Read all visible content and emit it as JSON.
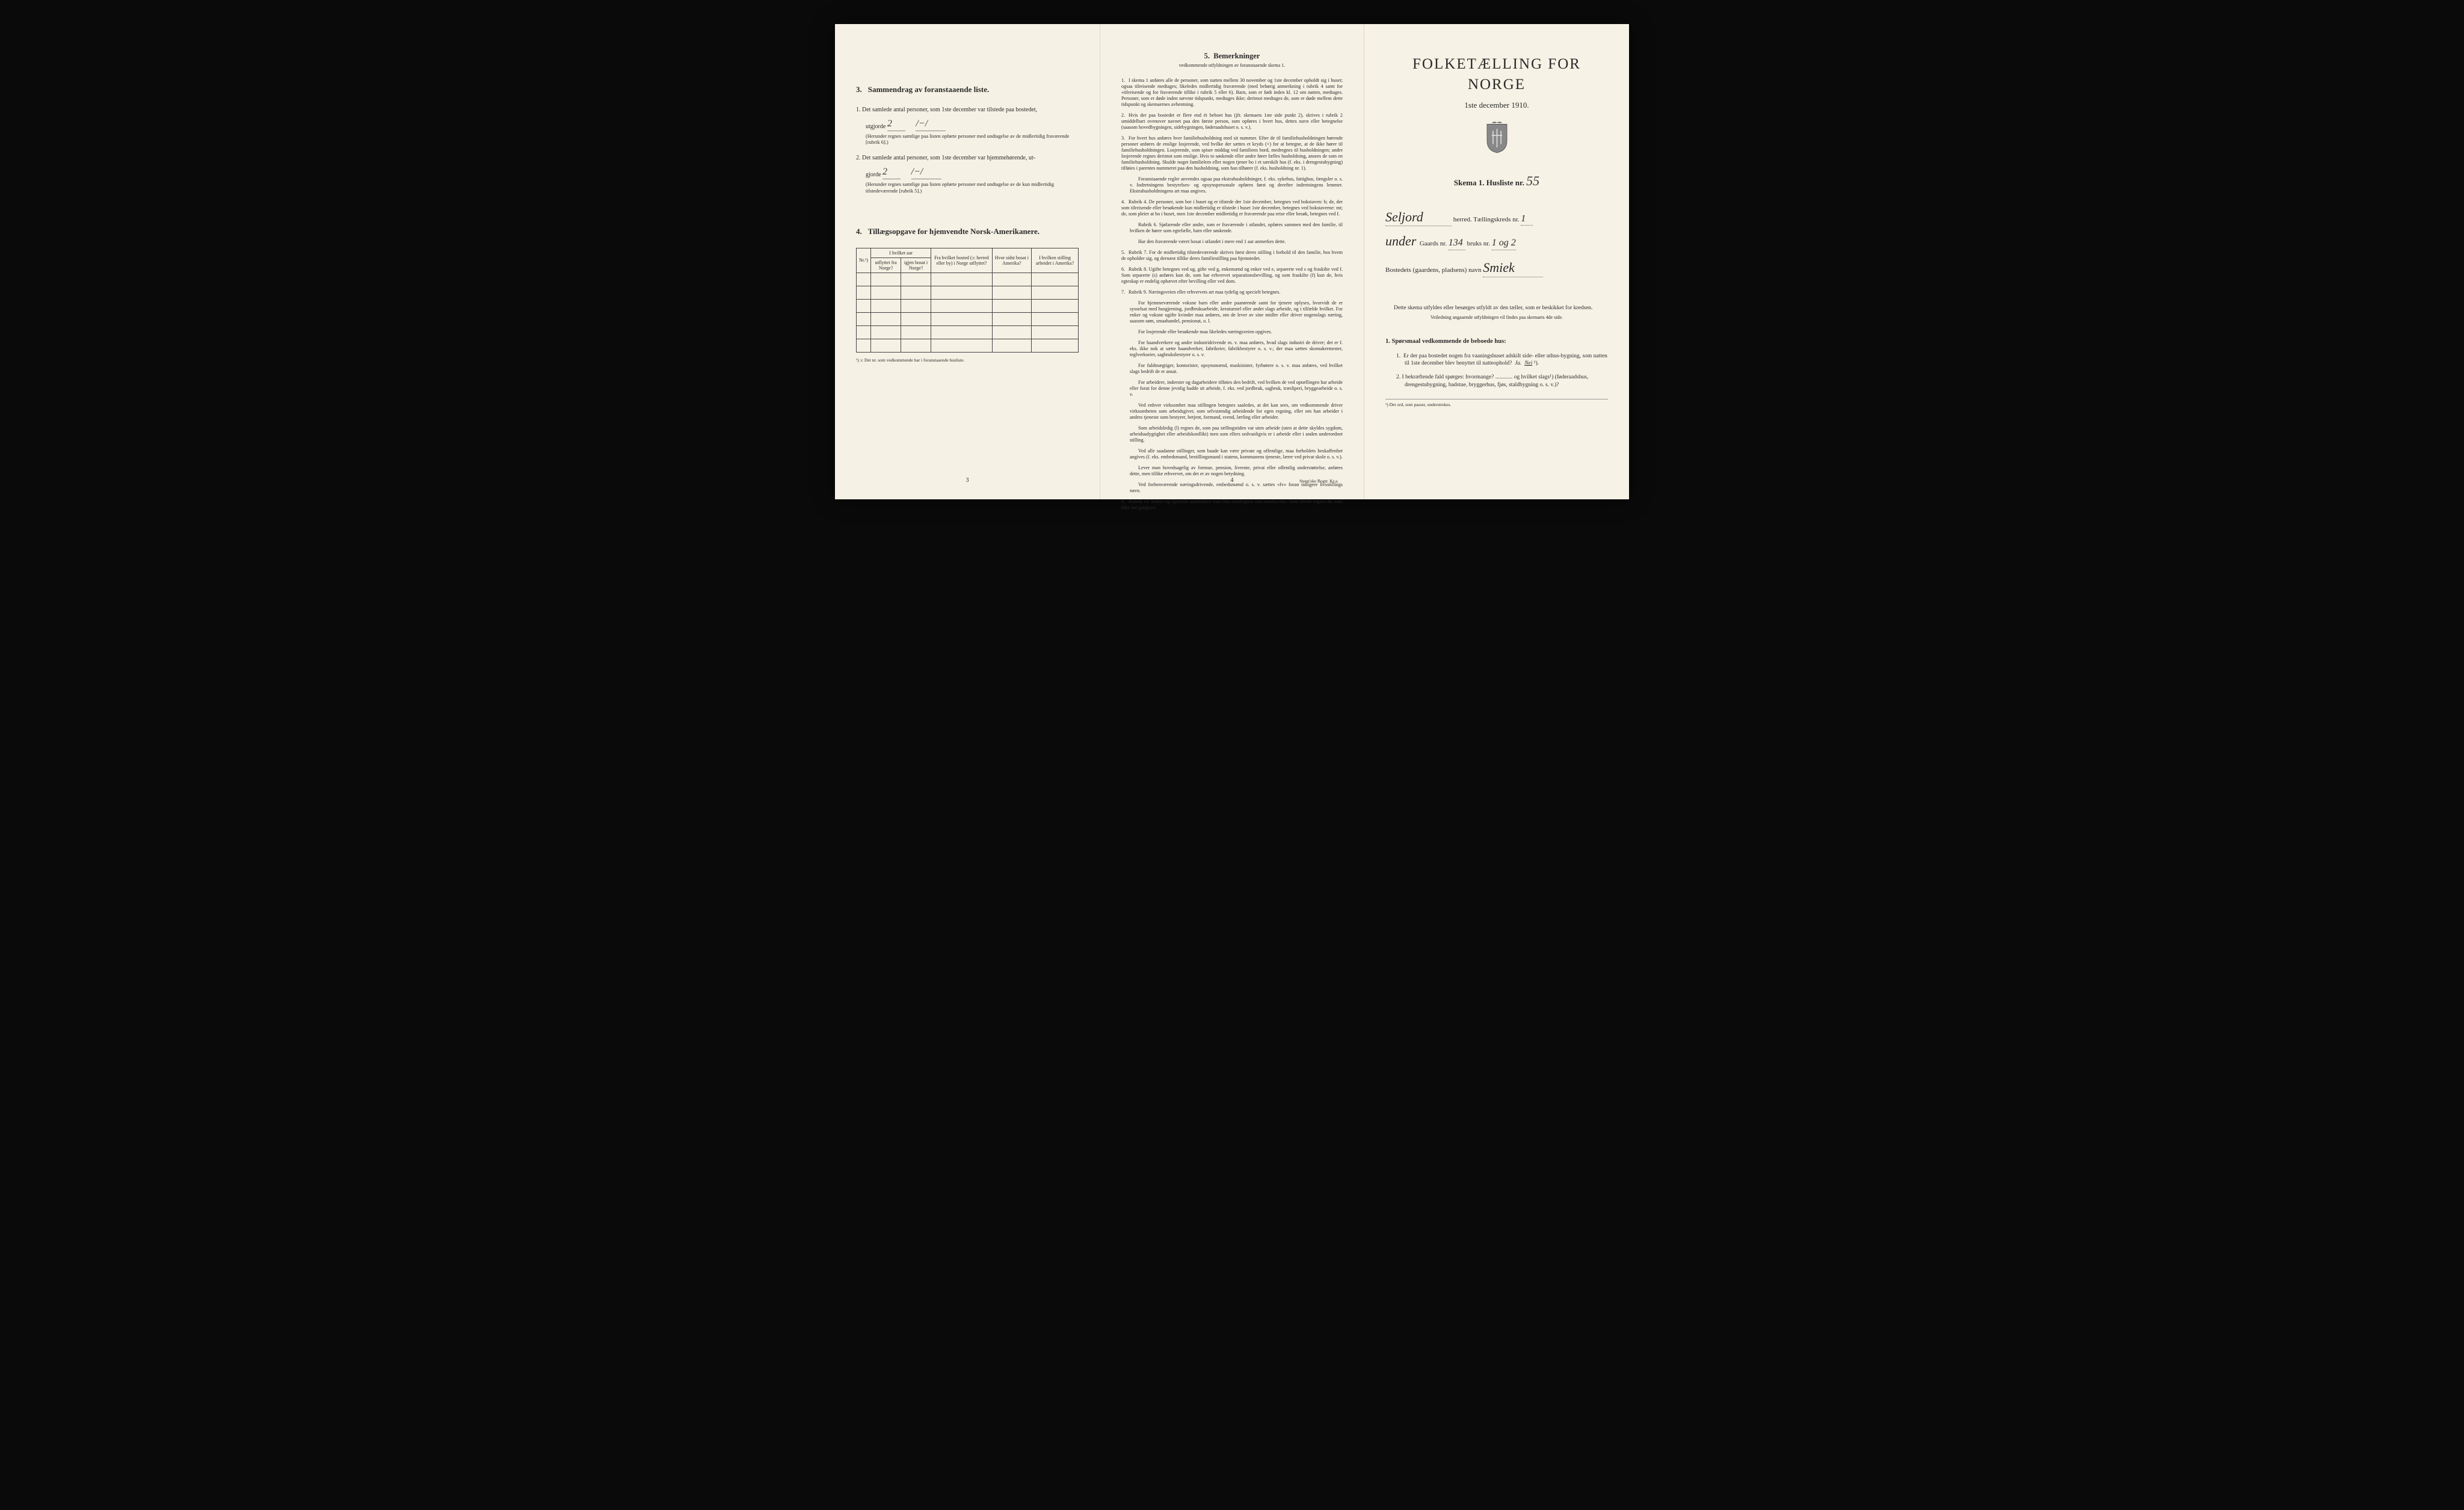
{
  "background_color": "#0a0a0a",
  "page_bg": "#f5f1e4",
  "text_color": "#2a2a2a",
  "left": {
    "sec3": {
      "num": "3.",
      "title": "Sammendrag av foranstaaende liste.",
      "item1_label": "1.  Det samlede antal personer, som 1ste december var tilstede paa bostedet,",
      "utgjorde": "utgjorde",
      "item1_val1": "2",
      "item1_val2": "/−/",
      "item1_note": "(Herunder regnes samtlige paa listen opførte personer med undtagelse av de midlertidig fraværende [rubrik 6].)",
      "item2_label": "2.  Det samlede antal personer, som 1ste december var hjemmehørende, ut-",
      "gjorde": "gjorde",
      "item2_val1": "2",
      "item2_val2": "/−/",
      "item2_note": "(Herunder regnes samtlige paa listen opførte personer med undtagelse av de kun midlertidig tilstedeværende [rubrik 5].)"
    },
    "sec4": {
      "num": "4.",
      "title": "Tillægsopgave for hjemvendte Norsk-Amerikanere.",
      "cols": {
        "c1": "Nr.¹)",
        "c2a": "I hvilket aar",
        "c2b1": "utflyttet fra Norge?",
        "c2b2": "igjen bosat i Norge?",
        "c3": "Fra hvilket bosted (ɔ: herred eller by) i Norge utflyttet?",
        "c4": "Hvor sidst bosat i Amerika?",
        "c5": "I hvilken stilling arbeidet i Amerika?"
      },
      "empty_rows": 6,
      "footnote": "¹) ɔ: Det nr. som vedkommende har i foranstaaende husliste."
    },
    "page_num": "3"
  },
  "middle": {
    "head_num": "5.",
    "head": "Bemerkninger",
    "sub": "vedkommende utfyldningen av foranstaaende skema 1.",
    "rules": [
      {
        "n": "1.",
        "text": "I skema 1 anføres alle de personer, som natten mellem 30 november og 1ste december opholdt sig i huset; ogsaa tilreisende medtages; likeledes midlertidig fraværende (med behørig anmerkning i rubrik 4 samt for «tilreisende og for fraværende tillike i rubrik 5 eller 6). Barn, som er født inden kl. 12 om natten, medtages. Personer, som er døde inden nævnte tidspunkt, medtages ikke; derimot medtages de, som er døde mellem dette tidspunkt og skemaernes avhentning."
      },
      {
        "n": "2.",
        "text": "Hvis der paa bostedet er flere end ét beboet hus (jfr. skemaets 1ste side punkt 2), skrives i rubrik 2 umiddelbart ovenover navnet paa den første person, som opføres i hvert hus, dettes navn eller betegnelse (saasom hovedbygningen, sidebygningen, føderaadshuset o. s. v.)."
      },
      {
        "n": "3.",
        "text": "For hvert hus anføres hver familiehusholdning med sit nummer. Efter de til familiehusholdningen hørende personer anføres de enslige losjerende, ved hvilke der sættes et kryds (×) for at betegne, at de ikke hører til familiehusholdningen. Losjerende, som spiser middag ved familiens bord, medregnes til husholdningen; andre losjerende regnes derimot som enslige. Hvis to søskende eller andre fører fælles husholdning, ansees de som en familiehusholdning. Skulde noget familielem eller nogen tjener bo i et særskilt hus (f. eks. i drengestubygning) tilføies i parentes nummeret paa den husholdning, som han tilhører (f. eks. husholdning nr. 1).",
        "sub": "Foranstaaende regler anvendes ogsaa paa ekstrahusholdninger, f. eks. sykehus, fattighus, fængsler o. s. v. Indretningens bestyrelses- og opsynspersonale opføres først og derefter indretningens lemmer. Ekstrahusholdningens art maa angives."
      },
      {
        "n": "4.",
        "text": "Rubrik 4. De personer, som bor i huset og er tilstede der 1ste december, betegnes ved bokstaven: b; de, der som tilreisende eller besøkende kun midlertidig er tilstede i huset 1ste december, betegnes ved bokstaverne: mt; de, som pleier at bo i huset, men 1ste december midlertidig er fraværende paa reise eller besøk, betegnes ved f.",
        "sub": "Rubrik 6. Sjøfarende eller andre, som er fraværende i utlandet, opføres sammen med den familie, til hvilken de hører som egtefælle, barn eller søskende.\nHar den fraværende været bosat i utlandet i mere end 1 aar anmerkes dette."
      },
      {
        "n": "5.",
        "text": "Rubrik 7. For de midlertidig tilstedeværende skrives først deres stilling i forhold til den familie, hos hvem de opholder sig, og dernæst tillike deres familiestilling paa hjemstedet."
      },
      {
        "n": "6.",
        "text": "Rubrik 8. Ugifte betegnes ved ug, gifte ved g, enkemænd og enker ved e, separerte ved s og fraskilte ved f. Som separerte (s) anføres kun de, som har erhvervet separationsbevilling, og som fraskilte (f) kun de, hvis egteskap er endelig ophævet efter bevilling eller ved dom."
      },
      {
        "n": "7.",
        "text": "Rubrik 9. Næringsveien eller erhvervets art maa tydelig og specielt betegnes.",
        "paras": [
          "For hjemmeværende voksne barn eller andre paarørende samt for tjenere oplyses, hvorvidt de er sysselsat med husgjerning, jordbruksarbeide, kreaturstel eller andet slags arbeide, og i tilfælde hvilket. For enker og voksne ugifte kvinder maa anføres, om de lever av sine midler eller driver nogenslags næring, saasom søm, smaahandel, pensionat, o. l.",
          "For losjerende eller besøkende maa likeledes næringsveien opgives.",
          "For haandverkere og andre industridrivende m. v. maa anføres, hvad slags industri de driver; det er f. eks. ikke nok at sætte haandverker, fabrikeier, fabrikbestyrer o. s. v.; der maa sættes skomakermester, teglverkseier, sagbruksbestyrer o. s. v.",
          "For fuldmægtiger, kontorister, opsynsmænd, maskinister, fyrbøtere o. s. v. maa anføres, ved hvilket slags bedrift de er ansat.",
          "For arbeidere, inderster og dagarbeidere tilføies den bedrift, ved hvilken de ved optællingen har arbeide eller forut for denne jevnlig hadde sit arbeide, f. eks. ved jordbruk, sagbruk, træsliperi, bryggearbeide o. s. v.",
          "Ved enhver virksomhet maa stillingen betegnes saaledes, at det kan sees, om vedkommende driver virksomheten som arbeidsgiver, som selvstændig arbeidende for egen regning, eller om han arbeider i andres tjeneste som bestyrer, betjent, formand, svend, lærling eller arbeider.",
          "Som arbeidsledig (l) regnes de, som paa tællingstiden var uten arbeide (uten at dette skyldes sygdom, arbeidsudygtighet eller arbeidskonflikt) men som ellers sedvanligvis er i arbeide eller i anden underordnet stilling.",
          "Ved alle saadanne stillinger, som baade kan være private og offentlige, maa forholdets beskaffenhet angives (f. eks. embedsmand, bestillingsmand i statens, kommunens tjeneste, lærer ved privat skole o. s. v.).",
          "Lever man hovedsagelig av formue, pension, livrente, privat eller offentlig understøttelse, anføres dette, men tillike erhvervet, om det er av nogen betydning.",
          "Ved forhenværende næringsdrivende, embedsmænd o. s. v. sættes «fv» foran tidligere livsstillings navn."
        ]
      },
      {
        "n": "8.",
        "text": "Rubrik 14. Sinker og lignende aandssløve maa ikke medregnes som aandssvake.\nSom blinde regnes de, som ikke har gangsyn."
      }
    ],
    "page_num": "4",
    "printer": "Steen'ske Bogtr. Kr.a."
  },
  "right": {
    "title": "FOLKETÆLLING FOR NORGE",
    "date": "1ste december 1910.",
    "skema_label": "Skema 1.   Husliste nr.",
    "husliste_nr": "55",
    "herred_val": "Seljord",
    "herred_label": "herred.  Tællingskreds nr.",
    "kreds_nr": "1",
    "under": "under",
    "gaard_label": "Gaards nr.",
    "gaard_nr": "134",
    "bruk_label": "bruks nr.",
    "bruk_nr": "1 og 2",
    "bosted_label": "Bostedets (gaardens, pladsens) navn",
    "bosted_val": "Smiek",
    "para1": "Dette skema utfyldes eller besørges utfyldt av den tæller, som er beskikket for kredsen.",
    "para1_sub": "Veiledning angaaende utfyldningen vil findes paa skemaets 4de side.",
    "q_head": "1.  Spørsmaal vedkommende de beboede hus:",
    "q1": "1.  Er der paa bostedet nogen fra vaaningshuset adskilt side- eller uthus-bygning, som natten til 1ste december blev benyttet til natteophold?   Ja.   Nei ¹).",
    "q2": "2.  I bekræftende fald spørges: hvormange? ............ og hvilket slags¹) (føderaadshus, drengestubygning, badstue, bryggerhus, fjøs, staldbygning o. s. v.)?",
    "foot": "¹) Det ord, som passer, understrekes."
  }
}
